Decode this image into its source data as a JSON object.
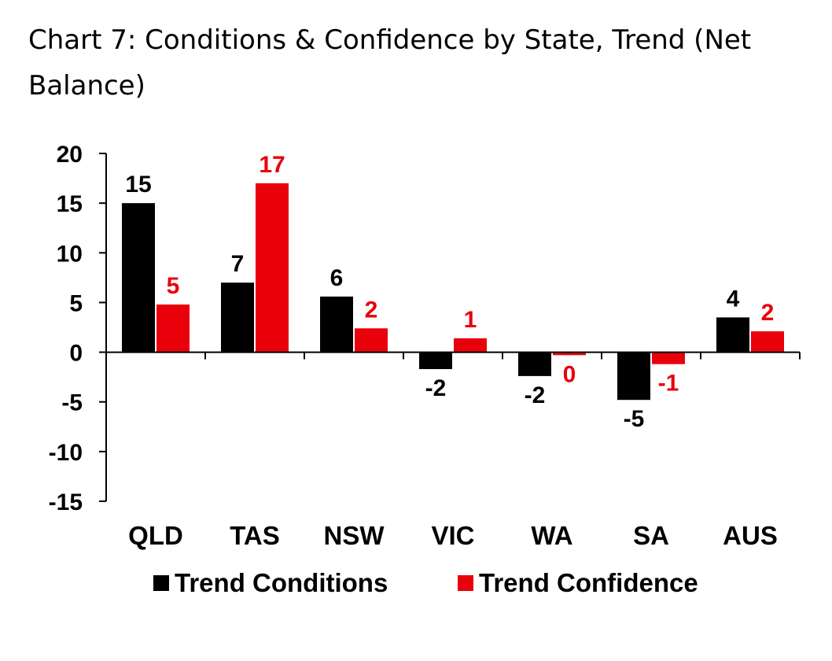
{
  "chart_data": {
    "type": "bar",
    "title": "Chart 7: Conditions & Confidence by State, Trend (Net Balance)",
    "categories": [
      "QLD",
      "TAS",
      "NSW",
      "VIC",
      "WA",
      "SA",
      "AUS"
    ],
    "series": [
      {
        "name": "Trend Conditions",
        "color": "#000000",
        "values": [
          15,
          7,
          5.6,
          -1.7,
          -2.4,
          -4.8,
          3.5
        ],
        "labels": [
          "15",
          "7",
          "6",
          "-2",
          "-2",
          "-5",
          "4"
        ]
      },
      {
        "name": "Trend Confidence",
        "color": "#e8000b",
        "values": [
          4.8,
          17,
          2.4,
          1.4,
          -0.3,
          -1.2,
          2.1
        ],
        "labels": [
          "5",
          "17",
          "2",
          "1",
          "0",
          "-1",
          "2"
        ]
      }
    ],
    "ylim": [
      -15,
      20
    ],
    "yticks": [
      "20",
      "15",
      "10",
      "5",
      "0",
      "-5",
      "-10",
      "-15"
    ],
    "ytick_values": [
      20,
      15,
      10,
      5,
      0,
      -5,
      -10,
      -15
    ],
    "xlabel": "",
    "ylabel": "",
    "grid": false,
    "legend_position": "bottom"
  }
}
